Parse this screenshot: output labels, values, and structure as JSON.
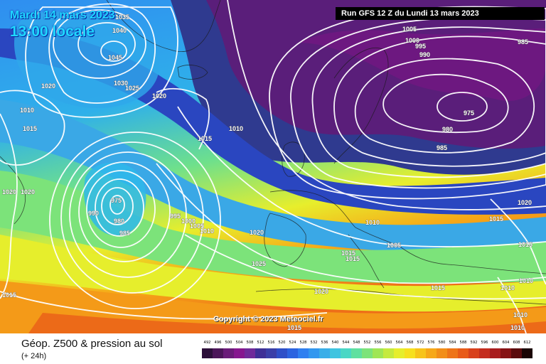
{
  "header": {
    "date_line": "Mardi 14 mars 2023",
    "time_line": "13:00 locale",
    "run_banner": "Run GFS 12 Z du Lundi 13 mars 2023"
  },
  "copyright": "Copyright © 2023 Meteociel.fr",
  "legend": {
    "title": "Géop. Z500 & pression au sol",
    "subtitle": "(+ 24h)",
    "scale_values": [
      "492",
      "496",
      "500",
      "504",
      "508",
      "512",
      "516",
      "520",
      "524",
      "528",
      "532",
      "536",
      "540",
      "544",
      "548",
      "552",
      "556",
      "560",
      "564",
      "568",
      "572",
      "576",
      "580",
      "584",
      "588",
      "592",
      "596",
      "600",
      "604",
      "608",
      "612"
    ],
    "scale_colors": [
      "#2c0f3a",
      "#4b1559",
      "#6a1b79",
      "#86168f",
      "#6f2a9a",
      "#3e2f96",
      "#3a3fa8",
      "#2e4fc8",
      "#2b63e0",
      "#2f7ff0",
      "#3297ef",
      "#3aaee8",
      "#3fc4e0",
      "#4ad7c5",
      "#5fe0a0",
      "#7ce37a",
      "#9fe655",
      "#c5ea3e",
      "#e6ee2c",
      "#f6e01f",
      "#f7c41a",
      "#f6a818",
      "#f28e18",
      "#ee7418",
      "#e85a18",
      "#d8401c",
      "#c42c1e",
      "#a81c1e",
      "#861214",
      "#5a0a0c",
      "#1a0404"
    ]
  },
  "pressure_labels": [
    "1035",
    "1040",
    "1045",
    "1030",
    "1025",
    "1020",
    "1010",
    "1015",
    "1020",
    "1020",
    "1020",
    "1010",
    "1015",
    "975",
    "990",
    "980",
    "985",
    "995",
    "1000",
    "1005",
    "1010",
    "1020",
    "1025",
    "1015",
    "1020",
    "1005",
    "1000",
    "995",
    "990",
    "985",
    "975",
    "980",
    "985",
    "1015",
    "1020",
    "1010",
    "1005",
    "1015",
    "1015",
    "1015",
    "1015",
    "1010",
    "1010",
    "1010",
    "1010",
    "1015"
  ]
}
